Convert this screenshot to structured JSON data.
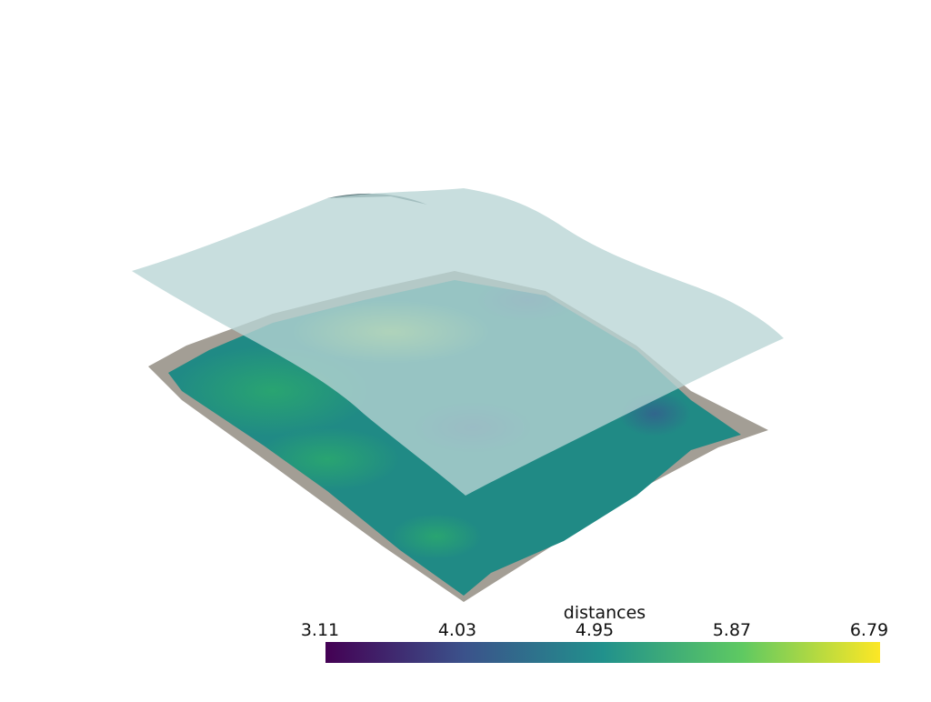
{
  "scalar_bar": {
    "title": "distances",
    "clim": [
      3.11,
      6.79
    ],
    "ticks": [
      3.11,
      4.03,
      4.95,
      5.87,
      6.79
    ],
    "colors": [
      "#440154",
      "#3b528b",
      "#21918c",
      "#5ec962",
      "#fde725"
    ]
  }
}
